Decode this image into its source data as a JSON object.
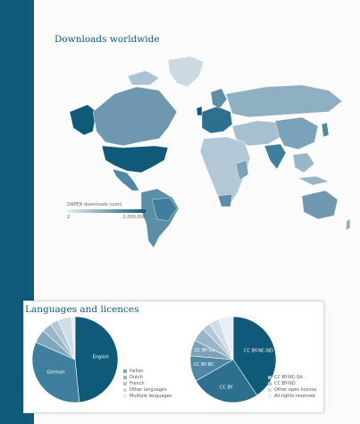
{
  "map": {
    "title": "Downloads worldwide",
    "legend_title": "OAPEN downloads (sum)",
    "legend_min": "2",
    "legend_max": "2,000,000",
    "colors": {
      "low": "#e8eef3",
      "high": "#0f5a78",
      "stripe": "#0f5a78"
    }
  },
  "languages_section": {
    "title": "Languages and licences"
  },
  "chart_data": [
    {
      "type": "pie",
      "slices": [
        {
          "label": "English",
          "value": 48.4,
          "color": "#0f5a78"
        },
        {
          "label": "German",
          "value": 33.2,
          "color": "#3f7f9d"
        },
        {
          "label": "Italian",
          "value": 5.1,
          "color": "#7fa6bd"
        },
        {
          "label": "Dutch",
          "value": 3.6,
          "color": "#98b6c8"
        },
        {
          "label": "French",
          "value": 3.2,
          "color": "#b3c8d5"
        },
        {
          "label": "Other languages",
          "value": 5.0,
          "color": "#cfdde6"
        },
        {
          "label": "Multiple languages",
          "value": 1.5,
          "color": "#e8eef3"
        }
      ],
      "legend": [
        "Italian",
        "Dutch",
        "French",
        "Other languages",
        "Multiple languages"
      ]
    },
    {
      "type": "pie",
      "slices": [
        {
          "label": "CC BY-NC-ND",
          "value": 40.6,
          "color": "#0f5a78"
        },
        {
          "label": "CC BY",
          "value": 26.1,
          "color": "#2d6f8e"
        },
        {
          "label": "CC BY-NC",
          "value": 9.7,
          "color": "#4f88a4"
        },
        {
          "label": "CC BY-SA",
          "value": 6.0,
          "color": "#7aa3ba"
        },
        {
          "label": "CC BY-NC-SA",
          "value": 5.2,
          "color": "#98b6c8"
        },
        {
          "label": "CC BY-ND",
          "value": 3.1,
          "color": "#b3c8d5"
        },
        {
          "label": "Other open license",
          "value": 3.8,
          "color": "#cfdde6"
        },
        {
          "label": "All rights reserved",
          "value": 5.5,
          "color": "#e8eef3"
        }
      ],
      "legend": [
        "CC BY-NC-SA",
        "CC BY-ND",
        "Other open license",
        "All rights reserved"
      ]
    }
  ]
}
